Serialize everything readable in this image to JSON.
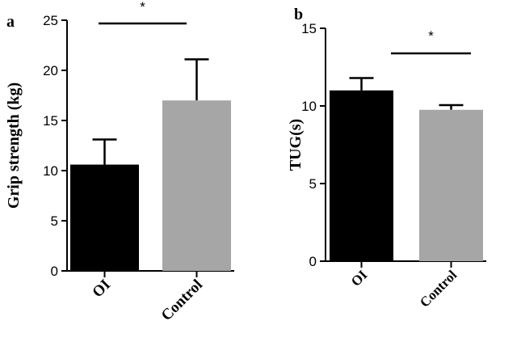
{
  "chart_data": [
    {
      "type": "bar",
      "panel": "a",
      "title": "",
      "xlabel": "",
      "ylabel": "Grip strength (kg)",
      "ylim": [
        0,
        25
      ],
      "yticks": [
        0,
        5,
        10,
        15,
        20,
        25
      ],
      "categories": [
        "OI",
        "Control"
      ],
      "values": [
        10.6,
        17.0
      ],
      "errors": [
        2.5,
        4.1
      ],
      "colors": [
        "#000000",
        "#a6a6a6"
      ],
      "significance": "*"
    },
    {
      "type": "bar",
      "panel": "b",
      "title": "",
      "xlabel": "",
      "ylabel": "TUG(s)",
      "ylim": [
        0,
        15
      ],
      "yticks": [
        0,
        5,
        10,
        15
      ],
      "categories": [
        "OI",
        "Control"
      ],
      "values": [
        11.0,
        9.75
      ],
      "errors": [
        0.8,
        0.3
      ],
      "colors": [
        "#000000",
        "#a6a6a6"
      ],
      "significance": "*"
    }
  ]
}
